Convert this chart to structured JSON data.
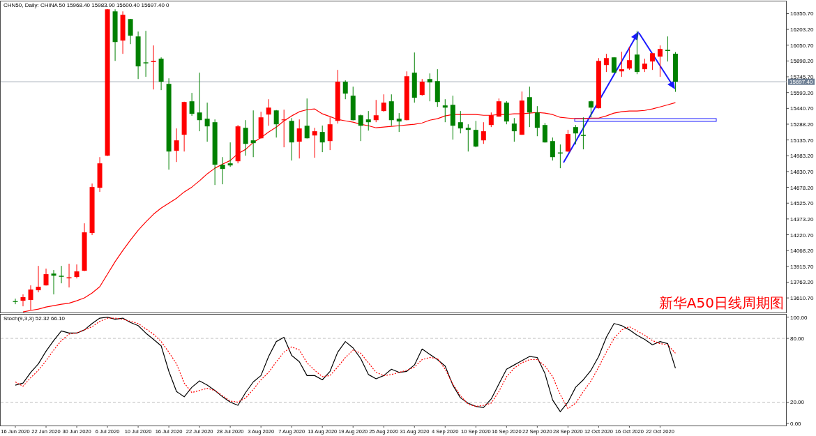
{
  "chart_data": [
    {
      "type": "candlestick",
      "title": "CHN50, Daily: CHINA 50  15968.40 15983.90 15600.40 15697.40 0",
      "categories": [
        null,
        null,
        null,
        null,
        null,
        null,
        null,
        null,
        null,
        null,
        null,
        null,
        null,
        null,
        null,
        null,
        null,
        null,
        null,
        null,
        null,
        null,
        null,
        null,
        null,
        null,
        null,
        null,
        null,
        null,
        null,
        null,
        null,
        null,
        null,
        null,
        null,
        null,
        null,
        null,
        null,
        null,
        null,
        null,
        null,
        null,
        null,
        null,
        null,
        null,
        null,
        null,
        null,
        null,
        null,
        null,
        null,
        null,
        null,
        null,
        null,
        null,
        null,
        null,
        null,
        null,
        null,
        null,
        null,
        null,
        null,
        null,
        null,
        null,
        null,
        null,
        null,
        null,
        null,
        null,
        null,
        null,
        null,
        null,
        null,
        null,
        null
      ],
      "ohlc": [
        [
          13580,
          13604,
          13550,
          13575
        ],
        [
          13584,
          13645,
          13530,
          13618
        ],
        [
          13591,
          13732,
          13496,
          13692
        ],
        [
          13685,
          13920,
          13665,
          13719
        ],
        [
          13732,
          13894,
          13730,
          13840
        ],
        [
          13846,
          13880,
          13645,
          13826
        ],
        [
          13825,
          13920,
          13752,
          13815
        ],
        [
          13800,
          13941,
          13712,
          13810
        ],
        [
          13813,
          13934,
          13799,
          13867
        ],
        [
          13873,
          14331,
          13870,
          14244
        ],
        [
          14237,
          14715,
          14217,
          14681
        ],
        [
          14674,
          14970,
          14634,
          14910
        ],
        [
          14984,
          16400,
          14980,
          16397
        ],
        [
          16377,
          16397,
          15899,
          16081
        ],
        [
          16095,
          16377,
          15967,
          16344
        ],
        [
          16303,
          16305,
          16061,
          16142
        ],
        [
          16135,
          16182,
          15724,
          15846
        ],
        [
          15885,
          16189,
          15745,
          15875
        ],
        [
          15888,
          16048,
          15623,
          15898
        ],
        [
          15920,
          15933,
          15617,
          15698
        ],
        [
          15677,
          15731,
          14849,
          15024
        ],
        [
          15031,
          15247,
          14923,
          15132
        ],
        [
          15186,
          15505,
          15024,
          15502
        ],
        [
          15509,
          15590,
          15368,
          15388
        ],
        [
          15401,
          15785,
          15220,
          15327
        ],
        [
          15341,
          15496,
          15119,
          15267
        ],
        [
          15307,
          15334,
          14701,
          14897
        ],
        [
          14897,
          14970,
          14708,
          14856
        ],
        [
          14910,
          15112,
          14876,
          14890
        ],
        [
          14930,
          15280,
          14910,
          15267
        ],
        [
          15253,
          15327,
          14984,
          15098
        ],
        [
          15132,
          15421,
          14970,
          15105
        ],
        [
          15152,
          15408,
          15150,
          15354
        ],
        [
          15381,
          15529,
          15273,
          15448
        ],
        [
          15421,
          15425,
          15159,
          15287
        ],
        [
          15327,
          15428,
          15065,
          15334
        ],
        [
          15320,
          15347,
          14937,
          15112
        ],
        [
          15119,
          15334,
          14957,
          15247
        ],
        [
          15273,
          15536,
          15150,
          15152
        ],
        [
          15179,
          15253,
          14964,
          15220
        ],
        [
          15213,
          15275,
          15018,
          15112
        ],
        [
          15125,
          15354,
          15038,
          15287
        ],
        [
          15320,
          15812,
          15294,
          15698
        ],
        [
          15698,
          15711,
          15529,
          15583
        ],
        [
          15563,
          15650,
          15325,
          15327
        ],
        [
          15374,
          15381,
          15125,
          15273
        ],
        [
          15334,
          15415,
          15226,
          15307
        ],
        [
          15327,
          15522,
          15307,
          15374
        ],
        [
          15415,
          15576,
          15408,
          15496
        ],
        [
          15509,
          15576,
          15273,
          15327
        ],
        [
          15341,
          15395,
          15213,
          15314
        ],
        [
          15327,
          15798,
          15325,
          15751
        ],
        [
          15785,
          15980,
          15496,
          15543
        ],
        [
          15570,
          15724,
          15563,
          15698
        ],
        [
          15724,
          15778,
          15509,
          15691
        ],
        [
          15704,
          15819,
          15455,
          15502
        ],
        [
          15469,
          15529,
          15307,
          15448
        ],
        [
          15475,
          15563,
          15139,
          15273
        ],
        [
          15307,
          15415,
          15199,
          15247
        ],
        [
          15253,
          15287,
          15024,
          15233
        ],
        [
          15233,
          15320,
          15065,
          15072
        ],
        [
          15132,
          15307,
          15098,
          15220
        ],
        [
          15280,
          15401,
          15260,
          15374
        ],
        [
          15361,
          15536,
          15360,
          15509
        ],
        [
          15496,
          15510,
          15287,
          15314
        ],
        [
          15294,
          15347,
          15119,
          15220
        ],
        [
          15186,
          15603,
          15185,
          15516
        ],
        [
          15549,
          15650,
          15260,
          15401
        ],
        [
          15401,
          15462,
          15172,
          15253
        ],
        [
          15280,
          15300,
          15110,
          15112
        ],
        [
          15125,
          15159,
          14937,
          14970
        ],
        [
          15015,
          15092,
          14863,
          15005
        ],
        [
          15024,
          15233,
          15020,
          15193
        ],
        [
          15260,
          15280,
          15092,
          15199
        ],
        [
          15185,
          15354,
          15045,
          15175
        ],
        [
          15509,
          15516,
          15354,
          15448
        ],
        [
          15442,
          15926,
          15440,
          15899
        ],
        [
          15859,
          15967,
          15792,
          15926
        ],
        [
          15933,
          15935,
          15785,
          15785
        ],
        [
          15798,
          15987,
          15745,
          15819
        ],
        [
          15825,
          16034,
          15812,
          15906
        ],
        [
          15960,
          16189,
          15771,
          15792
        ],
        [
          15819,
          15920,
          15792,
          15872
        ],
        [
          15893,
          15975,
          15812,
          15973
        ],
        [
          15940,
          16048,
          15745,
          16014
        ],
        [
          16005,
          16135,
          15893,
          15995
        ],
        [
          15968.4,
          15983.9,
          15600.4,
          15697.4
        ]
      ],
      "colors": [
        "#008000",
        "#ff0000",
        "#ff0000",
        "#ff0000",
        "#ff0000",
        "#008000",
        "#008000",
        "#ff0000",
        "#ff0000",
        "#ff0000",
        "#ff0000",
        "#ff0000",
        "#ff0000",
        "#008000",
        "#ff0000",
        "#008000",
        "#008000",
        "#008000",
        "#ff0000",
        "#008000",
        "#008000",
        "#ff0000",
        "#ff0000",
        "#008000",
        "#008000",
        "#008000",
        "#008000",
        "#008000",
        "#008000",
        "#ff0000",
        "#008000",
        "#008000",
        "#ff0000",
        "#ff0000",
        "#008000",
        "#ff0000",
        "#008000",
        "#ff0000",
        "#008000",
        "#ff0000",
        "#008000",
        "#ff0000",
        "#ff0000",
        "#008000",
        "#008000",
        "#008000",
        "#008000",
        "#ff0000",
        "#ff0000",
        "#008000",
        "#008000",
        "#ff0000",
        "#008000",
        "#ff0000",
        "#008000",
        "#008000",
        "#008000",
        "#008000",
        "#008000",
        "#008000",
        "#008000",
        "#ff0000",
        "#ff0000",
        "#ff0000",
        "#008000",
        "#008000",
        "#ff0000",
        "#008000",
        "#008000",
        "#008000",
        "#008000",
        "#008000",
        "#ff0000",
        "#008000",
        "#008000",
        "#008000",
        "#ff0000",
        "#ff0000",
        "#008000",
        "#ff0000",
        "#ff0000",
        "#008000",
        "#ff0000",
        "#ff0000",
        "#ff0000",
        "#008000",
        "#008000"
      ],
      "series": [
        {
          "type": "line",
          "color": "#ff0000",
          "values": [
            null,
            13476,
            13490,
            13503,
            13523,
            13537,
            13550,
            13560,
            13584,
            13611,
            13658,
            13719,
            13840,
            13961,
            14069,
            14170,
            14264,
            14345,
            14419,
            14479,
            14526,
            14573,
            14634,
            14681,
            14742,
            14809,
            14863,
            14903,
            14937,
            15004,
            15045,
            15112,
            15159,
            15213,
            15260,
            15320,
            15368,
            15408,
            15428,
            15435,
            15388,
            15361,
            15334,
            15320,
            15307,
            15287,
            15273,
            15253,
            15260,
            15267,
            15273,
            15280,
            15287,
            15300,
            15327,
            15341,
            15368,
            15381,
            15381,
            15381,
            15381,
            15374,
            15374,
            15381,
            15381,
            15388,
            15388,
            15395,
            15401,
            15395,
            15381,
            15354,
            15347,
            15341,
            15341,
            15347,
            15347,
            15368,
            15395,
            15408,
            15415,
            15415,
            15421,
            15435,
            15455,
            15475,
            15496
          ]
        }
      ],
      "ylim": [
        13470,
        16480
      ],
      "yticks": [
        {
          "value": 13610.7,
          "label": "13610.70"
        },
        {
          "value": 13763.2,
          "label": "13763.20"
        },
        {
          "value": 13915.7,
          "label": "13915.70"
        },
        {
          "value": 14068.2,
          "label": "14068.20"
        },
        {
          "value": 14220.7,
          "label": "14220.70"
        },
        {
          "value": 14373.2,
          "label": "14373.20"
        },
        {
          "value": 14525.7,
          "label": "14525.70"
        },
        {
          "value": 14678.2,
          "label": "14678.20"
        },
        {
          "value": 14830.7,
          "label": "14830.70"
        },
        {
          "value": 14983.2,
          "label": "14983.20"
        },
        {
          "value": 15135.7,
          "label": "15135.70"
        },
        {
          "value": 15288.2,
          "label": "15288.20"
        },
        {
          "value": 15440.7,
          "label": "15440.70"
        },
        {
          "value": 15593.2,
          "label": "15593.20"
        },
        {
          "value": 15745.7,
          "label": "15745.70"
        },
        {
          "value": 15898.2,
          "label": "15898.20"
        },
        {
          "value": 16050.7,
          "label": "16050.70"
        },
        {
          "value": 16203.2,
          "label": "16203.20"
        },
        {
          "value": 16355.7,
          "label": "16355.70"
        }
      ],
      "ref_lines": [
        {
          "axis": "y",
          "value": 15697.4,
          "label": "15697.40",
          "color": "#a0a8b4"
        }
      ],
      "annotations": [
        "新华A50日线周期图"
      ],
      "tick_labels": "y"
    },
    {
      "type": "line",
      "title": "Stoch(9,3,3) 52.32 66.10",
      "categories": [
        "16 Jun 2020",
        null,
        null,
        null,
        "22 Jun 2020",
        null,
        null,
        null,
        "30 Jun 2020",
        null,
        null,
        null,
        "6 Jul 2020",
        null,
        null,
        null,
        "10 Jul 2020",
        null,
        null,
        null,
        "16 Jul 2020",
        null,
        null,
        null,
        "22 Jul 2020",
        null,
        null,
        null,
        "28 Jul 2020",
        null,
        null,
        null,
        "3 Aug 2020",
        null,
        null,
        null,
        "7 Aug 2020",
        null,
        null,
        null,
        "13 Aug 2020",
        null,
        null,
        null,
        "19 Aug 2020",
        null,
        null,
        null,
        "25 Aug 2020",
        null,
        null,
        null,
        "31 Aug 2020",
        null,
        null,
        null,
        "4 Sep 2020",
        null,
        null,
        null,
        "10 Sep 2020",
        null,
        null,
        null,
        "16 Sep 2020",
        null,
        null,
        null,
        "22 Sep 2020",
        null,
        null,
        null,
        "28 Sep 2020",
        null,
        null,
        null,
        "12 Oct 2020",
        null,
        null,
        null,
        "16 Oct 2020",
        null,
        null,
        null,
        "22 Oct 2020",
        null,
        null
      ],
      "series": [
        {
          "color": "#000000",
          "values": [
            36,
            38,
            48,
            56,
            68,
            78,
            87,
            85,
            85,
            88,
            94,
            99,
            100,
            98,
            99,
            95,
            92,
            85,
            79,
            73,
            49,
            30,
            25,
            34,
            40,
            36,
            31,
            25,
            20,
            17,
            29,
            39,
            45,
            63,
            77,
            81,
            64,
            58,
            45,
            45,
            41,
            49,
            67,
            77,
            71,
            61,
            46,
            42,
            45,
            51,
            48,
            49,
            55,
            70,
            65,
            60,
            54,
            36,
            24,
            19,
            16,
            15,
            23,
            37,
            51,
            55,
            59,
            63,
            62,
            47,
            22,
            11,
            20,
            34,
            41,
            50,
            63,
            81,
            94,
            92,
            88,
            83,
            79,
            74,
            77,
            75,
            52
          ]
        },
        {
          "color": "#ff0000",
          "line_style": "dotted",
          "values": [
            39,
            35,
            43,
            50,
            59,
            69,
            78,
            84,
            85,
            88,
            91,
            96,
            99,
            99,
            98,
            96,
            94,
            89,
            84,
            77,
            67,
            56,
            38,
            29,
            31,
            33,
            31,
            26,
            21,
            20,
            24,
            32,
            41,
            48,
            58,
            67,
            72,
            69,
            57,
            50,
            44,
            45,
            53,
            62,
            69,
            66,
            57,
            48,
            45,
            46,
            48,
            50,
            53,
            60,
            62,
            61,
            51,
            37,
            26,
            18,
            16,
            17,
            19,
            30,
            44,
            52,
            57,
            60,
            60,
            54,
            44,
            27,
            14,
            19,
            30,
            40,
            53,
            67,
            80,
            88,
            91,
            87,
            83,
            78,
            75,
            74,
            66
          ]
        }
      ],
      "ylim": [
        -2,
        103
      ],
      "yticks": [
        {
          "value": 0,
          "label": "0.00"
        },
        {
          "value": 20,
          "label": "20.00"
        },
        {
          "value": 80,
          "label": "80.00"
        },
        {
          "value": 100,
          "label": "100.00"
        }
      ],
      "ref_lines": [
        {
          "axis": "y",
          "value": 80,
          "color": "#c0c0c0",
          "line_style": "dashed"
        },
        {
          "axis": "y",
          "value": 20,
          "color": "#c0c0c0",
          "line_style": "dashed"
        }
      ]
    }
  ]
}
